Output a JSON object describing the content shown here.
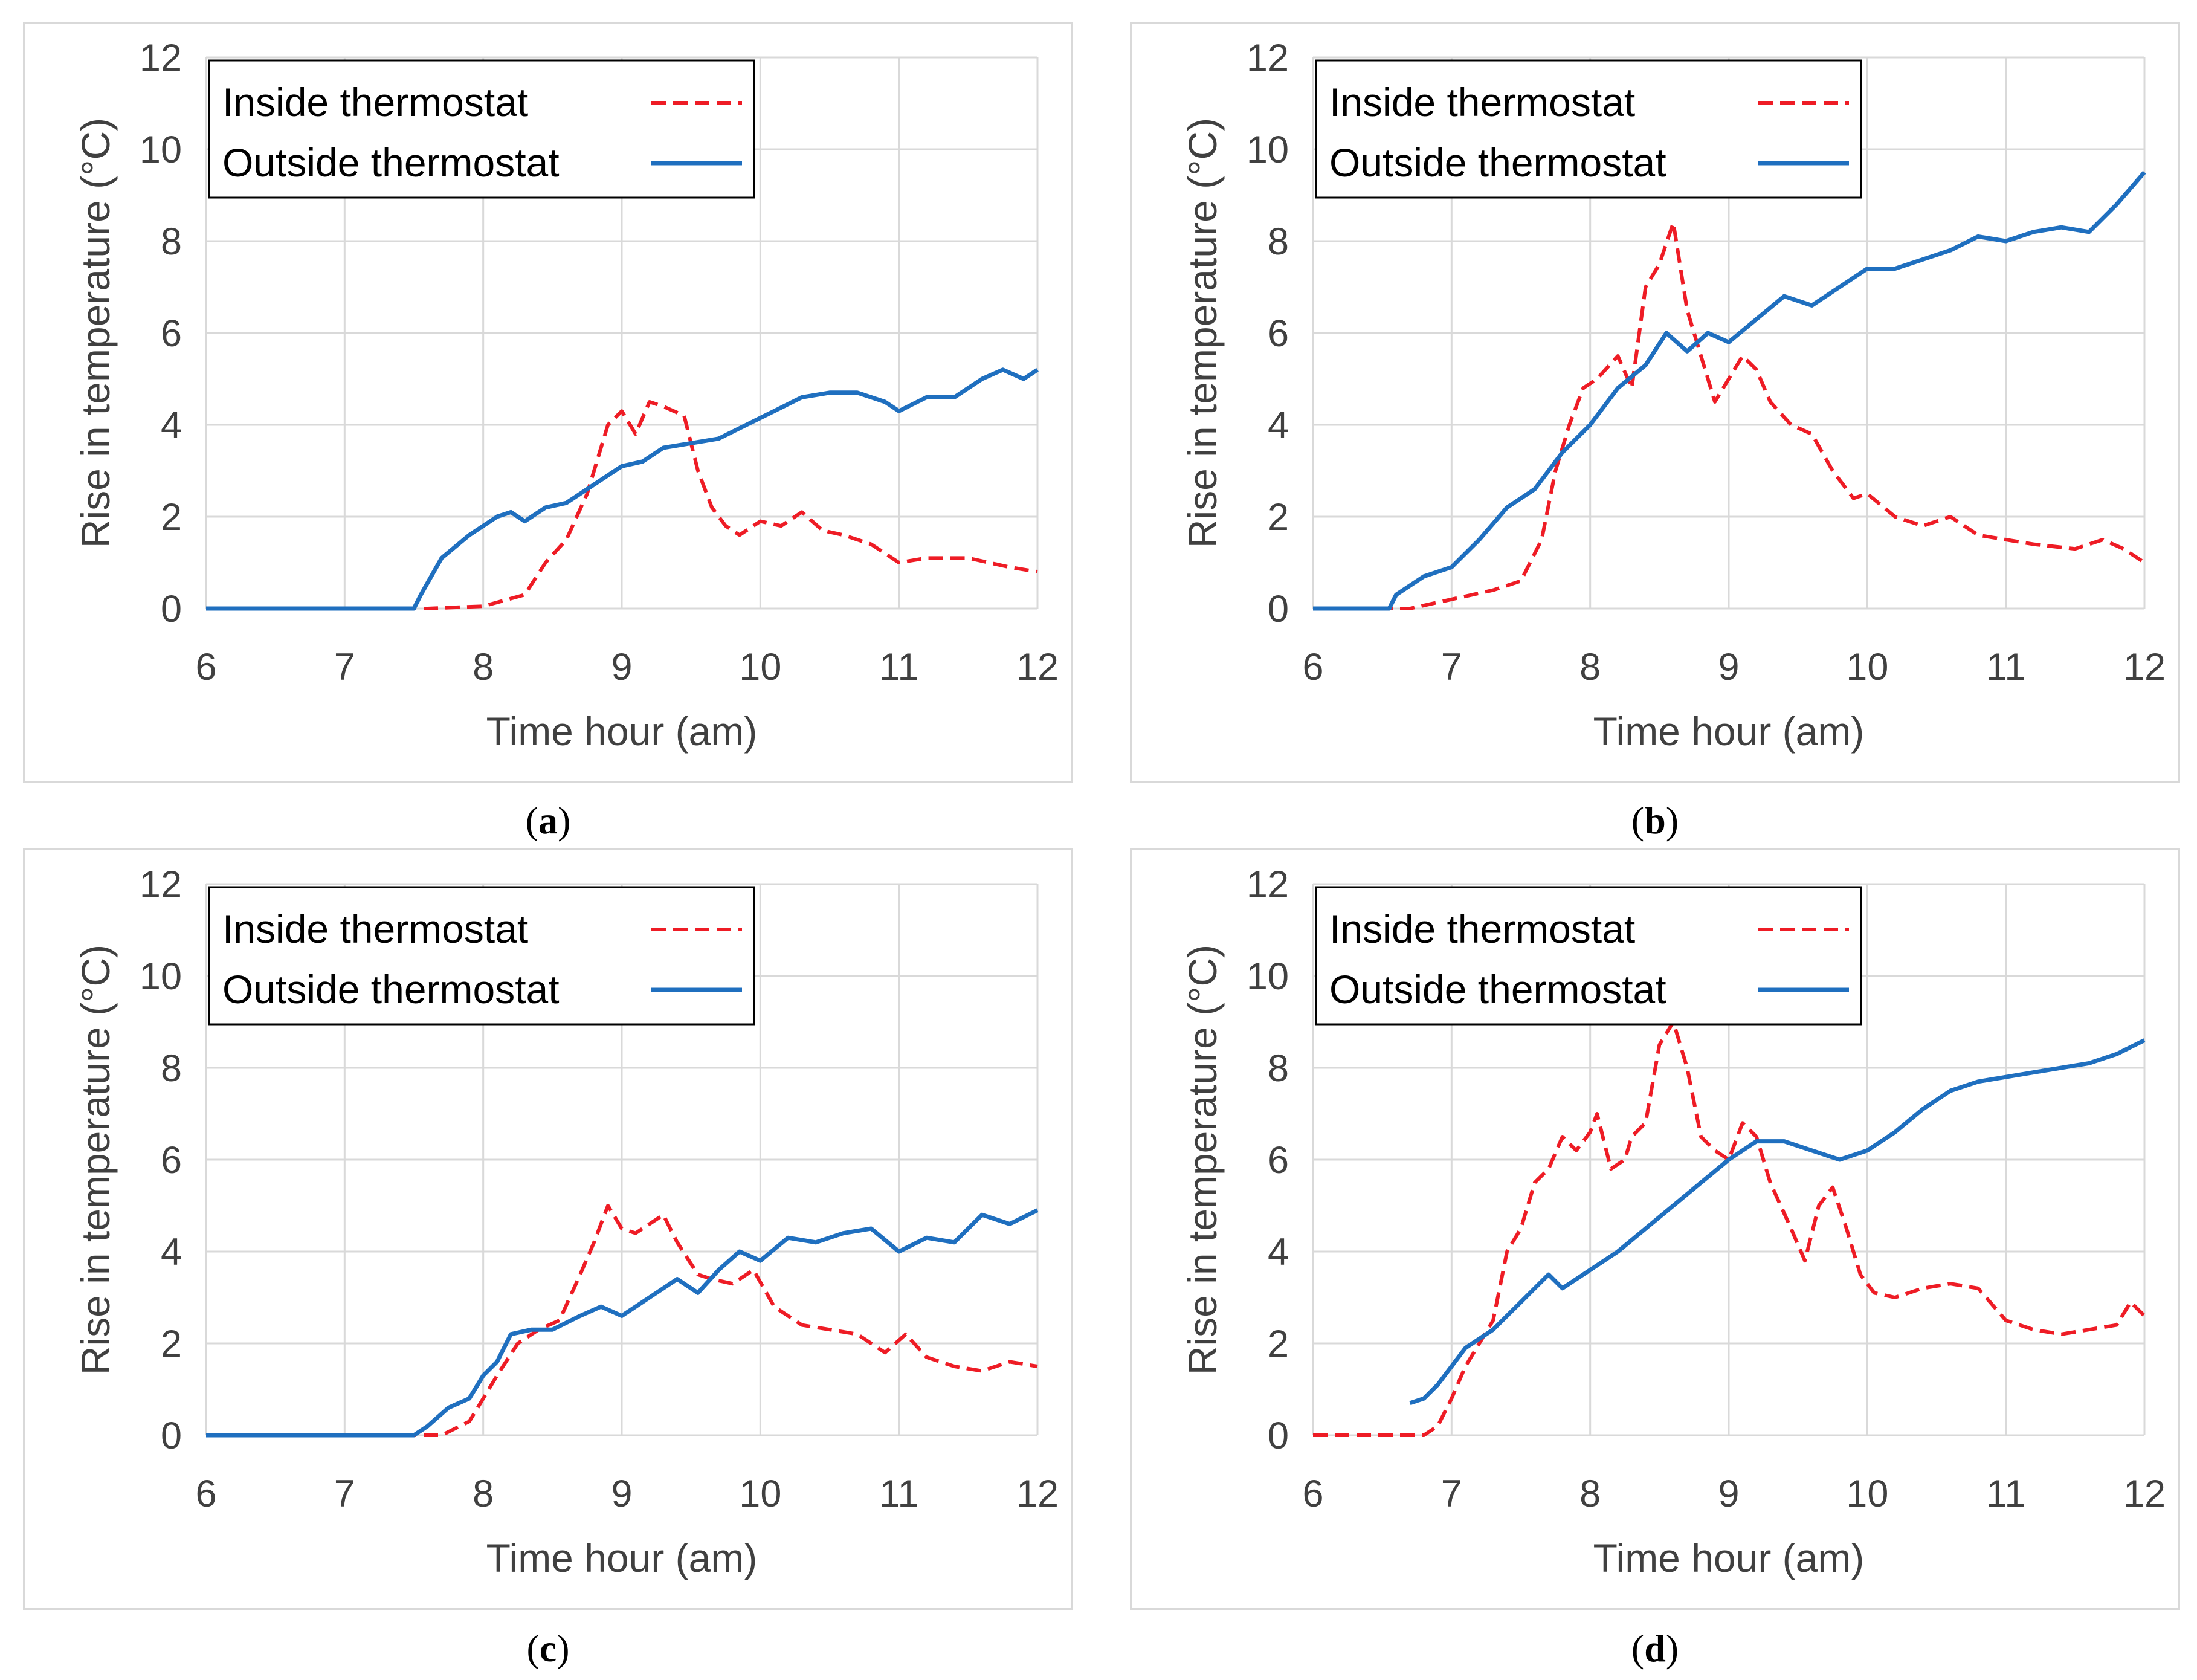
{
  "colors": {
    "inside": "#ee1c25",
    "outside": "#1f6fbf",
    "grid": "#d9d9d9",
    "axis_text": "#404040"
  },
  "chart_data": [
    {
      "panel": "a",
      "type": "line",
      "caption": "a",
      "xlabel": "Time hour (am)",
      "ylabel": "Rise in temperature (°C)",
      "xlim": [
        6,
        12
      ],
      "ylim": [
        0,
        12
      ],
      "xticks": [
        "6",
        "7",
        "8",
        "9",
        "10",
        "11",
        "12"
      ],
      "yticks": [
        "0",
        "2",
        "4",
        "6",
        "8",
        "10",
        "12"
      ],
      "legend": [
        "Inside thermostat",
        "Outside thermostat"
      ],
      "series": [
        {
          "name": "Inside thermostat",
          "style": "dashed",
          "x": [
            6.0,
            7.6,
            8.0,
            8.3,
            8.45,
            8.6,
            8.75,
            8.85,
            8.9,
            9.0,
            9.1,
            9.2,
            9.3,
            9.45,
            9.55,
            9.65,
            9.75,
            9.85,
            10.0,
            10.15,
            10.3,
            10.45,
            10.6,
            10.8,
            11.0,
            11.2,
            11.5,
            11.8,
            12.0
          ],
          "y": [
            0.0,
            0.0,
            0.05,
            0.3,
            1.0,
            1.5,
            2.5,
            3.5,
            4.0,
            4.3,
            3.8,
            4.5,
            4.4,
            4.2,
            3.0,
            2.2,
            1.8,
            1.6,
            1.9,
            1.8,
            2.1,
            1.7,
            1.6,
            1.4,
            1.0,
            1.1,
            1.1,
            0.9,
            0.8
          ]
        },
        {
          "name": "Outside thermostat",
          "style": "solid",
          "x": [
            6.0,
            7.5,
            7.55,
            7.7,
            7.9,
            8.1,
            8.2,
            8.3,
            8.45,
            8.6,
            8.75,
            8.9,
            9.0,
            9.15,
            9.3,
            9.5,
            9.7,
            9.9,
            10.1,
            10.3,
            10.5,
            10.7,
            10.9,
            11.0,
            11.2,
            11.4,
            11.6,
            11.75,
            11.9,
            12.0
          ],
          "y": [
            0.0,
            0.0,
            0.3,
            1.1,
            1.6,
            2.0,
            2.1,
            1.9,
            2.2,
            2.3,
            2.6,
            2.9,
            3.1,
            3.2,
            3.5,
            3.6,
            3.7,
            4.0,
            4.3,
            4.6,
            4.7,
            4.7,
            4.5,
            4.3,
            4.6,
            4.6,
            5.0,
            5.2,
            5.0,
            5.2
          ]
        }
      ]
    },
    {
      "panel": "b",
      "type": "line",
      "caption": "b",
      "xlabel": "Time hour (am)",
      "ylabel": "Rise in temperature (°C)",
      "xlim": [
        6,
        12
      ],
      "ylim": [
        0,
        12
      ],
      "xticks": [
        "6",
        "7",
        "8",
        "9",
        "10",
        "11",
        "12"
      ],
      "yticks": [
        "0",
        "2",
        "4",
        "6",
        "8",
        "10",
        "12"
      ],
      "legend": [
        "Inside thermostat",
        "Outside thermostat"
      ],
      "series": [
        {
          "name": "Inside thermostat",
          "style": "dashed",
          "x": [
            6.0,
            6.7,
            7.0,
            7.3,
            7.5,
            7.65,
            7.75,
            7.85,
            7.95,
            8.05,
            8.2,
            8.3,
            8.4,
            8.5,
            8.6,
            8.7,
            8.8,
            8.9,
            9.0,
            9.1,
            9.2,
            9.3,
            9.45,
            9.6,
            9.75,
            9.9,
            10.0,
            10.2,
            10.4,
            10.6,
            10.8,
            11.0,
            11.2,
            11.5,
            11.7,
            11.85,
            12.0
          ],
          "y": [
            0.0,
            0.0,
            0.2,
            0.4,
            0.6,
            1.5,
            3.0,
            4.0,
            4.8,
            5.0,
            5.5,
            4.8,
            7.0,
            7.5,
            8.4,
            6.5,
            5.5,
            4.5,
            5.0,
            5.5,
            5.2,
            4.5,
            4.0,
            3.8,
            3.0,
            2.4,
            2.5,
            2.0,
            1.8,
            2.0,
            1.6,
            1.5,
            1.4,
            1.3,
            1.5,
            1.3,
            1.0
          ]
        },
        {
          "name": "Outside thermostat",
          "style": "solid",
          "x": [
            6.0,
            6.55,
            6.6,
            6.8,
            7.0,
            7.2,
            7.4,
            7.6,
            7.8,
            8.0,
            8.2,
            8.4,
            8.55,
            8.7,
            8.85,
            9.0,
            9.2,
            9.4,
            9.6,
            9.8,
            10.0,
            10.2,
            10.4,
            10.6,
            10.8,
            11.0,
            11.2,
            11.4,
            11.6,
            11.8,
            12.0
          ],
          "y": [
            0.0,
            0.0,
            0.3,
            0.7,
            0.9,
            1.5,
            2.2,
            2.6,
            3.4,
            4.0,
            4.8,
            5.3,
            6.0,
            5.6,
            6.0,
            5.8,
            6.3,
            6.8,
            6.6,
            7.0,
            7.4,
            7.4,
            7.6,
            7.8,
            8.1,
            8.0,
            8.2,
            8.3,
            8.2,
            8.8,
            9.5
          ]
        }
      ]
    },
    {
      "panel": "c",
      "type": "line",
      "caption": "c",
      "xlabel": "Time hour (am)",
      "ylabel": "Rise in temperature (°C)",
      "xlim": [
        6,
        12
      ],
      "ylim": [
        0,
        12
      ],
      "xticks": [
        "6",
        "7",
        "8",
        "9",
        "10",
        "11",
        "12"
      ],
      "yticks": [
        "0",
        "2",
        "4",
        "6",
        "8",
        "10",
        "12"
      ],
      "legend": [
        "Inside thermostat",
        "Outside thermostat"
      ],
      "series": [
        {
          "name": "Inside thermostat",
          "style": "dashed",
          "x": [
            6.0,
            7.7,
            7.9,
            8.0,
            8.1,
            8.25,
            8.4,
            8.55,
            8.7,
            8.8,
            8.9,
            9.0,
            9.1,
            9.3,
            9.4,
            9.55,
            9.65,
            9.8,
            9.95,
            10.1,
            10.3,
            10.5,
            10.7,
            10.9,
            11.05,
            11.2,
            11.4,
            11.6,
            11.8,
            12.0
          ],
          "y": [
            0.0,
            0.0,
            0.3,
            0.8,
            1.3,
            2.0,
            2.3,
            2.5,
            3.5,
            4.2,
            5.0,
            4.5,
            4.4,
            4.8,
            4.2,
            3.5,
            3.4,
            3.3,
            3.6,
            2.8,
            2.4,
            2.3,
            2.2,
            1.8,
            2.2,
            1.7,
            1.5,
            1.4,
            1.6,
            1.5
          ]
        },
        {
          "name": "Outside thermostat",
          "style": "solid",
          "x": [
            6.0,
            7.5,
            7.6,
            7.75,
            7.9,
            8.0,
            8.1,
            8.2,
            8.35,
            8.5,
            8.7,
            8.85,
            9.0,
            9.2,
            9.4,
            9.55,
            9.7,
            9.85,
            10.0,
            10.2,
            10.4,
            10.6,
            10.8,
            11.0,
            11.2,
            11.4,
            11.6,
            11.8,
            12.0
          ],
          "y": [
            0.0,
            0.0,
            0.2,
            0.6,
            0.8,
            1.3,
            1.6,
            2.2,
            2.3,
            2.3,
            2.6,
            2.8,
            2.6,
            3.0,
            3.4,
            3.1,
            3.6,
            4.0,
            3.8,
            4.3,
            4.2,
            4.4,
            4.5,
            4.0,
            4.3,
            4.2,
            4.8,
            4.6,
            4.9
          ]
        }
      ]
    },
    {
      "panel": "d",
      "type": "line",
      "caption": "d",
      "xlabel": "Time hour (am)",
      "ylabel": "Rise in temperature (°C)",
      "xlim": [
        6,
        12
      ],
      "ylim": [
        0,
        12
      ],
      "xticks": [
        "6",
        "7",
        "8",
        "9",
        "10",
        "11",
        "12"
      ],
      "yticks": [
        "0",
        "2",
        "4",
        "6",
        "8",
        "10",
        "12"
      ],
      "legend": [
        "Inside thermostat",
        "Outside thermostat"
      ],
      "series": [
        {
          "name": "Inside thermostat",
          "style": "dashed",
          "x": [
            6.0,
            6.8,
            6.9,
            7.0,
            7.1,
            7.2,
            7.3,
            7.4,
            7.5,
            7.6,
            7.7,
            7.8,
            7.9,
            8.0,
            8.05,
            8.15,
            8.25,
            8.3,
            8.4,
            8.5,
            8.6,
            8.7,
            8.8,
            8.9,
            9.0,
            9.1,
            9.2,
            9.3,
            9.45,
            9.55,
            9.65,
            9.75,
            9.85,
            9.95,
            10.05,
            10.2,
            10.4,
            10.6,
            10.8,
            11.0,
            11.2,
            11.4,
            11.6,
            11.8,
            11.9,
            12.0
          ],
          "y": [
            0.0,
            0.0,
            0.2,
            0.8,
            1.5,
            2.0,
            2.5,
            4.0,
            4.5,
            5.5,
            5.8,
            6.5,
            6.2,
            6.6,
            7.0,
            5.8,
            6.0,
            6.5,
            6.8,
            8.5,
            9.0,
            8.0,
            6.5,
            6.2,
            6.0,
            6.8,
            6.5,
            5.5,
            4.5,
            3.8,
            5.0,
            5.4,
            4.5,
            3.5,
            3.1,
            3.0,
            3.2,
            3.3,
            3.2,
            2.5,
            2.3,
            2.2,
            2.3,
            2.4,
            2.9,
            2.6
          ]
        },
        {
          "name": "Outside thermostat",
          "style": "solid",
          "x": [
            6.7,
            6.8,
            6.9,
            7.0,
            7.1,
            7.2,
            7.3,
            7.4,
            7.5,
            7.6,
            7.7,
            7.8,
            8.0,
            8.2,
            8.4,
            8.6,
            8.8,
            9.0,
            9.2,
            9.4,
            9.6,
            9.8,
            10.0,
            10.2,
            10.4,
            10.6,
            10.8,
            11.0,
            11.2,
            11.4,
            11.6,
            11.8,
            12.0
          ],
          "y": [
            0.7,
            0.8,
            1.1,
            1.5,
            1.9,
            2.1,
            2.3,
            2.6,
            2.9,
            3.2,
            3.5,
            3.2,
            3.6,
            4.0,
            4.5,
            5.0,
            5.5,
            6.0,
            6.4,
            6.4,
            6.2,
            6.0,
            6.2,
            6.6,
            7.1,
            7.5,
            7.7,
            7.8,
            7.9,
            8.0,
            8.1,
            8.3,
            8.6
          ]
        }
      ]
    }
  ]
}
